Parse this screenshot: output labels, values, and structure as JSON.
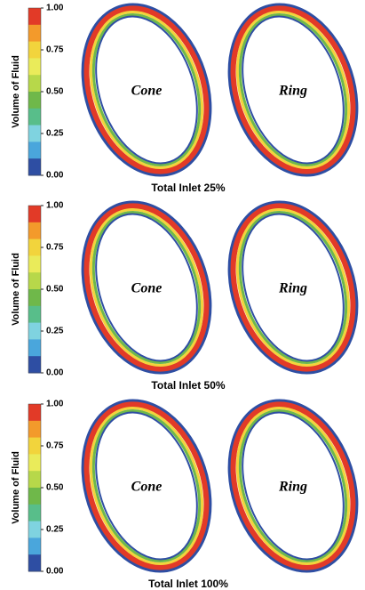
{
  "colorbar_colors": [
    "#e23a27",
    "#f39a2b",
    "#f2d43c",
    "#eaeb5a",
    "#b7d84a",
    "#6fb84a",
    "#58be8a",
    "#7fd3e0",
    "#4aa6dc",
    "#2e4ea3"
  ],
  "panels": [
    {
      "colorbar": {
        "title": "Volume of Fluid",
        "ticks": [
          "1.00",
          "0.75",
          "0.50",
          "0.25",
          "0.00"
        ]
      },
      "labels": [
        "Cone",
        "Ring"
      ],
      "caption": "Total Inlet 25%"
    },
    {
      "colorbar": {
        "title": "Volume of Fluid",
        "ticks": [
          "1.00",
          "0.75",
          "0.50",
          "0.25",
          "0.00"
        ]
      },
      "labels": [
        "Cone",
        "Ring"
      ],
      "caption": "Total Inlet 50%"
    },
    {
      "colorbar": {
        "title": "Volume of Fluid",
        "ticks": [
          "1.00",
          "0.75",
          "0.50",
          "0.25",
          "0.00"
        ]
      },
      "labels": [
        "Cone",
        "Ring"
      ],
      "caption": "Total Inlet 100%"
    }
  ]
}
